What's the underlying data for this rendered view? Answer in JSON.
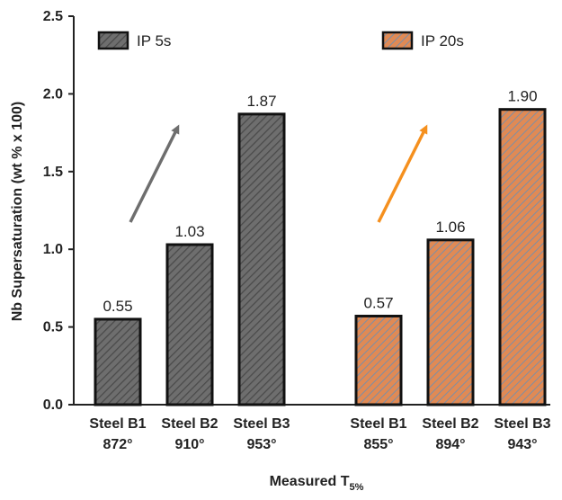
{
  "chart_data": {
    "type": "bar",
    "title": "",
    "ylabel": "Nb Supersaturation (wt % x 100)",
    "xlabel_main": "Measured T",
    "xlabel_sub": "5%",
    "ylim": [
      0,
      2.5
    ],
    "yticks": [
      "0.0",
      "0.5",
      "1.0",
      "1.5",
      "2.0",
      "2.5"
    ],
    "grid": false,
    "legend_placement": "top",
    "groups": [
      {
        "series_name": "IP 5s",
        "color": "#6e6e6e",
        "hatch": "#4a4a4a",
        "arrow_color": "#6e6e6e",
        "bars": [
          {
            "steel": "Steel B1",
            "temp": "872°",
            "value": 0.55,
            "label": "0.55"
          },
          {
            "steel": "Steel B2",
            "temp": "910°",
            "value": 1.03,
            "label": "1.03"
          },
          {
            "steel": "Steel B3",
            "temp": "953°",
            "value": 1.87,
            "label": "1.87"
          }
        ]
      },
      {
        "series_name": "IP 20s",
        "color": "#e08a55",
        "hatch": "#7b8fa6",
        "arrow_color": "#f5901e",
        "bars": [
          {
            "steel": "Steel B1",
            "temp": "855°",
            "value": 0.57,
            "label": "0.57"
          },
          {
            "steel": "Steel B2",
            "temp": "894°",
            "value": 1.06,
            "label": "1.06"
          },
          {
            "steel": "Steel B3",
            "temp": "943°",
            "value": 1.9,
            "label": "1.90"
          }
        ]
      }
    ]
  }
}
